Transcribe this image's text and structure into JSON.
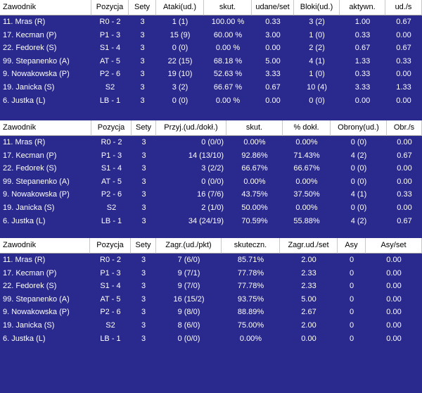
{
  "tables": [
    {
      "header": [
        "Zawodnik",
        "Pozycja",
        "Sety",
        "Ataki(ud.)",
        "skut.",
        "udane/set",
        "Bloki(ud.)",
        "aktywn.",
        "ud./s"
      ],
      "rows": [
        [
          "11. Mras (R)",
          "R0 - 2",
          "3",
          "1 (1)",
          "100.00 %",
          "0.33",
          "3 (2)",
          "1.00",
          "0.67"
        ],
        [
          "17. Kecman (P)",
          "P1 - 3",
          "3",
          "15 (9)",
          "60.00 %",
          "3.00",
          "1 (0)",
          "0.33",
          "0.00"
        ],
        [
          "22. Fedorek (S)",
          "S1 - 4",
          "3",
          "0 (0)",
          "0.00 %",
          "0.00",
          "2 (2)",
          "0.67",
          "0.67"
        ],
        [
          "99. Stepanenko (A)",
          "AT - 5",
          "3",
          "22 (15)",
          "68.18 %",
          "5.00",
          "4 (1)",
          "1.33",
          "0.33"
        ],
        [
          "9. Nowakowska (P)",
          "P2 - 6",
          "3",
          "19 (10)",
          "52.63 %",
          "3.33",
          "1 (0)",
          "0.33",
          "0.00"
        ],
        [
          "19. Janicka (S)",
          "S2",
          "3",
          "3 (2)",
          "66.67 %",
          "0.67",
          "10 (4)",
          "3.33",
          "1.33"
        ],
        [
          "6. Justka (L)",
          "LB - 1",
          "3",
          "0 (0)",
          "0.00 %",
          "0.00",
          "0 (0)",
          "0.00",
          "0.00"
        ]
      ]
    },
    {
      "header": [
        "Zawodnik",
        "Pozycja",
        "Sety",
        "Przyj.(ud./dokł.)",
        "skut.",
        "% dokł.",
        "Obrony(ud.)",
        "Obr./s"
      ],
      "rows": [
        [
          "11. Mras (R)",
          "R0 - 2",
          "3",
          "0 (0/0)",
          "0.00%",
          "0.00%",
          "0 (0)",
          "0.00"
        ],
        [
          "17. Kecman (P)",
          "P1 - 3",
          "3",
          "14 (13/10)",
          "92.86%",
          "71.43%",
          "4 (2)",
          "0.67"
        ],
        [
          "22. Fedorek (S)",
          "S1 - 4",
          "3",
          "3 (2/2)",
          "66.67%",
          "66.67%",
          "0 (0)",
          "0.00"
        ],
        [
          "99. Stepanenko (A)",
          "AT - 5",
          "3",
          "0 (0/0)",
          "0.00%",
          "0.00%",
          "0 (0)",
          "0.00"
        ],
        [
          "9. Nowakowska (P)",
          "P2 - 6",
          "3",
          "16 (7/6)",
          "43.75%",
          "37.50%",
          "4 (1)",
          "0.33"
        ],
        [
          "19. Janicka (S)",
          "S2",
          "3",
          "2 (1/0)",
          "50.00%",
          "0.00%",
          "0 (0)",
          "0.00"
        ],
        [
          "6. Justka (L)",
          "LB - 1",
          "3",
          "34 (24/19)",
          "70.59%",
          "55.88%",
          "4 (2)",
          "0.67"
        ]
      ]
    },
    {
      "header": [
        "Zawodnik",
        "Pozycja",
        "Sety",
        "Zagr.(ud./pkt)",
        "skuteczn.",
        "Zagr.ud./set",
        "Asy",
        "Asy/set"
      ],
      "rows": [
        [
          "11. Mras (R)",
          "R0 - 2",
          "3",
          "7 (6/0)",
          "85.71%",
          "2.00",
          "0",
          "0.00"
        ],
        [
          "17. Kecman (P)",
          "P1 - 3",
          "3",
          "9 (7/1)",
          "77.78%",
          "2.33",
          "0",
          "0.00"
        ],
        [
          "22. Fedorek (S)",
          "S1 - 4",
          "3",
          "9 (7/0)",
          "77.78%",
          "2.33",
          "0",
          "0.00"
        ],
        [
          "99. Stepanenko (A)",
          "AT - 5",
          "3",
          "16 (15/2)",
          "93.75%",
          "5.00",
          "0",
          "0.00"
        ],
        [
          "9. Nowakowska (P)",
          "P2 - 6",
          "3",
          "9 (8/0)",
          "88.89%",
          "2.67",
          "0",
          "0.00"
        ],
        [
          "19. Janicka (S)",
          "S2",
          "3",
          "8 (6/0)",
          "75.00%",
          "2.00",
          "0",
          "0.00"
        ],
        [
          "6. Justka (L)",
          "LB - 1",
          "3",
          "0 (0/0)",
          "0.00%",
          "0.00",
          "0",
          "0.00"
        ]
      ]
    }
  ]
}
